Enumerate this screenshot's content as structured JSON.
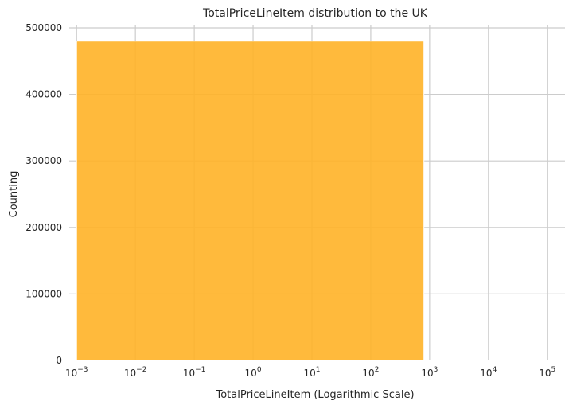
{
  "chart_data": {
    "type": "bar",
    "title": "TotalPriceLineItem distribution to the UK",
    "xlabel": "TotalPriceLineItem (Logarithmic Scale)",
    "ylabel": "Counting",
    "x_scale": "log",
    "xlim": [
      0.00075,
      200000
    ],
    "ylim": [
      0,
      500000
    ],
    "x_ticks": [
      {
        "value": 0.001,
        "base": "10",
        "exp": "−3"
      },
      {
        "value": 0.01,
        "base": "10",
        "exp": "−2"
      },
      {
        "value": 0.1,
        "base": "10",
        "exp": "−1"
      },
      {
        "value": 1,
        "base": "10",
        "exp": "0"
      },
      {
        "value": 10,
        "base": "10",
        "exp": "1"
      },
      {
        "value": 100,
        "base": "10",
        "exp": "2"
      },
      {
        "value": 1000,
        "base": "10",
        "exp": "3"
      },
      {
        "value": 10000,
        "base": "10",
        "exp": "4"
      },
      {
        "value": 100000,
        "base": "10",
        "exp": "5"
      }
    ],
    "y_ticks": [
      0,
      100000,
      200000,
      300000,
      400000,
      500000
    ],
    "y_tick_labels": [
      "0",
      "100000",
      "200000",
      "300000",
      "400000",
      "500000"
    ],
    "bins": [
      {
        "x_start": 0.001,
        "x_end": 800,
        "count": 480000
      }
    ],
    "bar_color": "#ffb327",
    "grid": true,
    "legend": "none"
  }
}
